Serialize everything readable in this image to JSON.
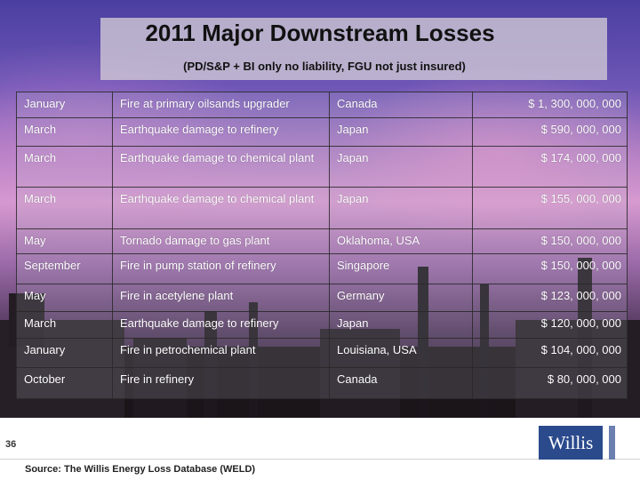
{
  "slide": {
    "title": "2011 Major Downstream Losses",
    "subtitle": "(PD/S&P + BI only no liability, FGU not just insured)",
    "page_number": "36",
    "source": "Source: The Willis Energy Loss Database (WELD)",
    "logo_text": "Willis"
  },
  "losses": [
    {
      "month": "January",
      "event": "Fire at primary oilsands upgrader",
      "location": "Canada",
      "amount": "$ 1, 300, 000, 000"
    },
    {
      "month": "March",
      "event": "Earthquake damage to refinery",
      "location": "Japan",
      "amount": "$ 590, 000, 000"
    },
    {
      "month": "March",
      "event": "Earthquake damage to chemical plant",
      "location": "Japan",
      "amount": "$ 174, 000, 000"
    },
    {
      "month": "March",
      "event": "Earthquake damage to chemical plant",
      "location": "Japan",
      "amount": "$ 155, 000, 000"
    },
    {
      "month": "May",
      "event": "Tornado damage to gas plant",
      "location": "Oklahoma, USA",
      "amount": "$ 150, 000, 000"
    },
    {
      "month": "September",
      "event": "Fire in pump station of refinery",
      "location": "Singapore",
      "amount": "$ 150, 000, 000"
    },
    {
      "month": "May",
      "event": "Fire in acetylene plant",
      "location": "Germany",
      "amount": "$ 123, 000, 000"
    },
    {
      "month": "March",
      "event": "Earthquake damage to refinery",
      "location": "Japan",
      "amount": "$ 120, 000, 000"
    },
    {
      "month": "January",
      "event": "Fire in petrochemical plant",
      "location": "Louisiana, USA",
      "amount": "$ 104, 000, 000"
    },
    {
      "month": "October",
      "event": "Fire in refinery",
      "location": "Canada",
      "amount": "$ 80, 000, 000"
    }
  ]
}
